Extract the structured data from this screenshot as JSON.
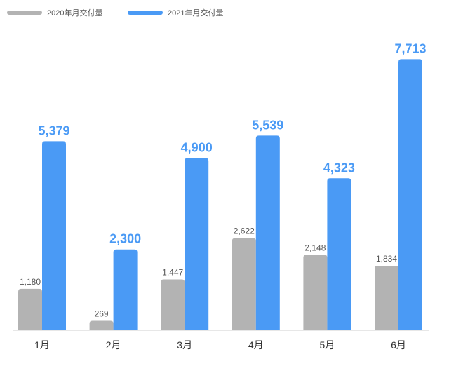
{
  "chart_data": {
    "type": "bar",
    "categories": [
      "1月",
      "2月",
      "3月",
      "4月",
      "5月",
      "6月"
    ],
    "series": [
      {
        "name": "2020年月交付量",
        "values": [
          1180,
          269,
          1447,
          2622,
          2148,
          1834
        ],
        "color": "#b3b3b3",
        "labels": [
          "1,180",
          "269",
          "1,447",
          "2,622",
          "2,148",
          "1,834"
        ]
      },
      {
        "name": "2021年月交付量",
        "values": [
          5379,
          2300,
          4900,
          5539,
          4323,
          7713
        ],
        "color": "#4a9af5",
        "labels": [
          "5,379",
          "2,300",
          "4,900",
          "5,539",
          "4,323",
          "7,713"
        ]
      }
    ],
    "ylim": [
      0,
      8000
    ],
    "legend_position": "top-left",
    "grid": false
  }
}
